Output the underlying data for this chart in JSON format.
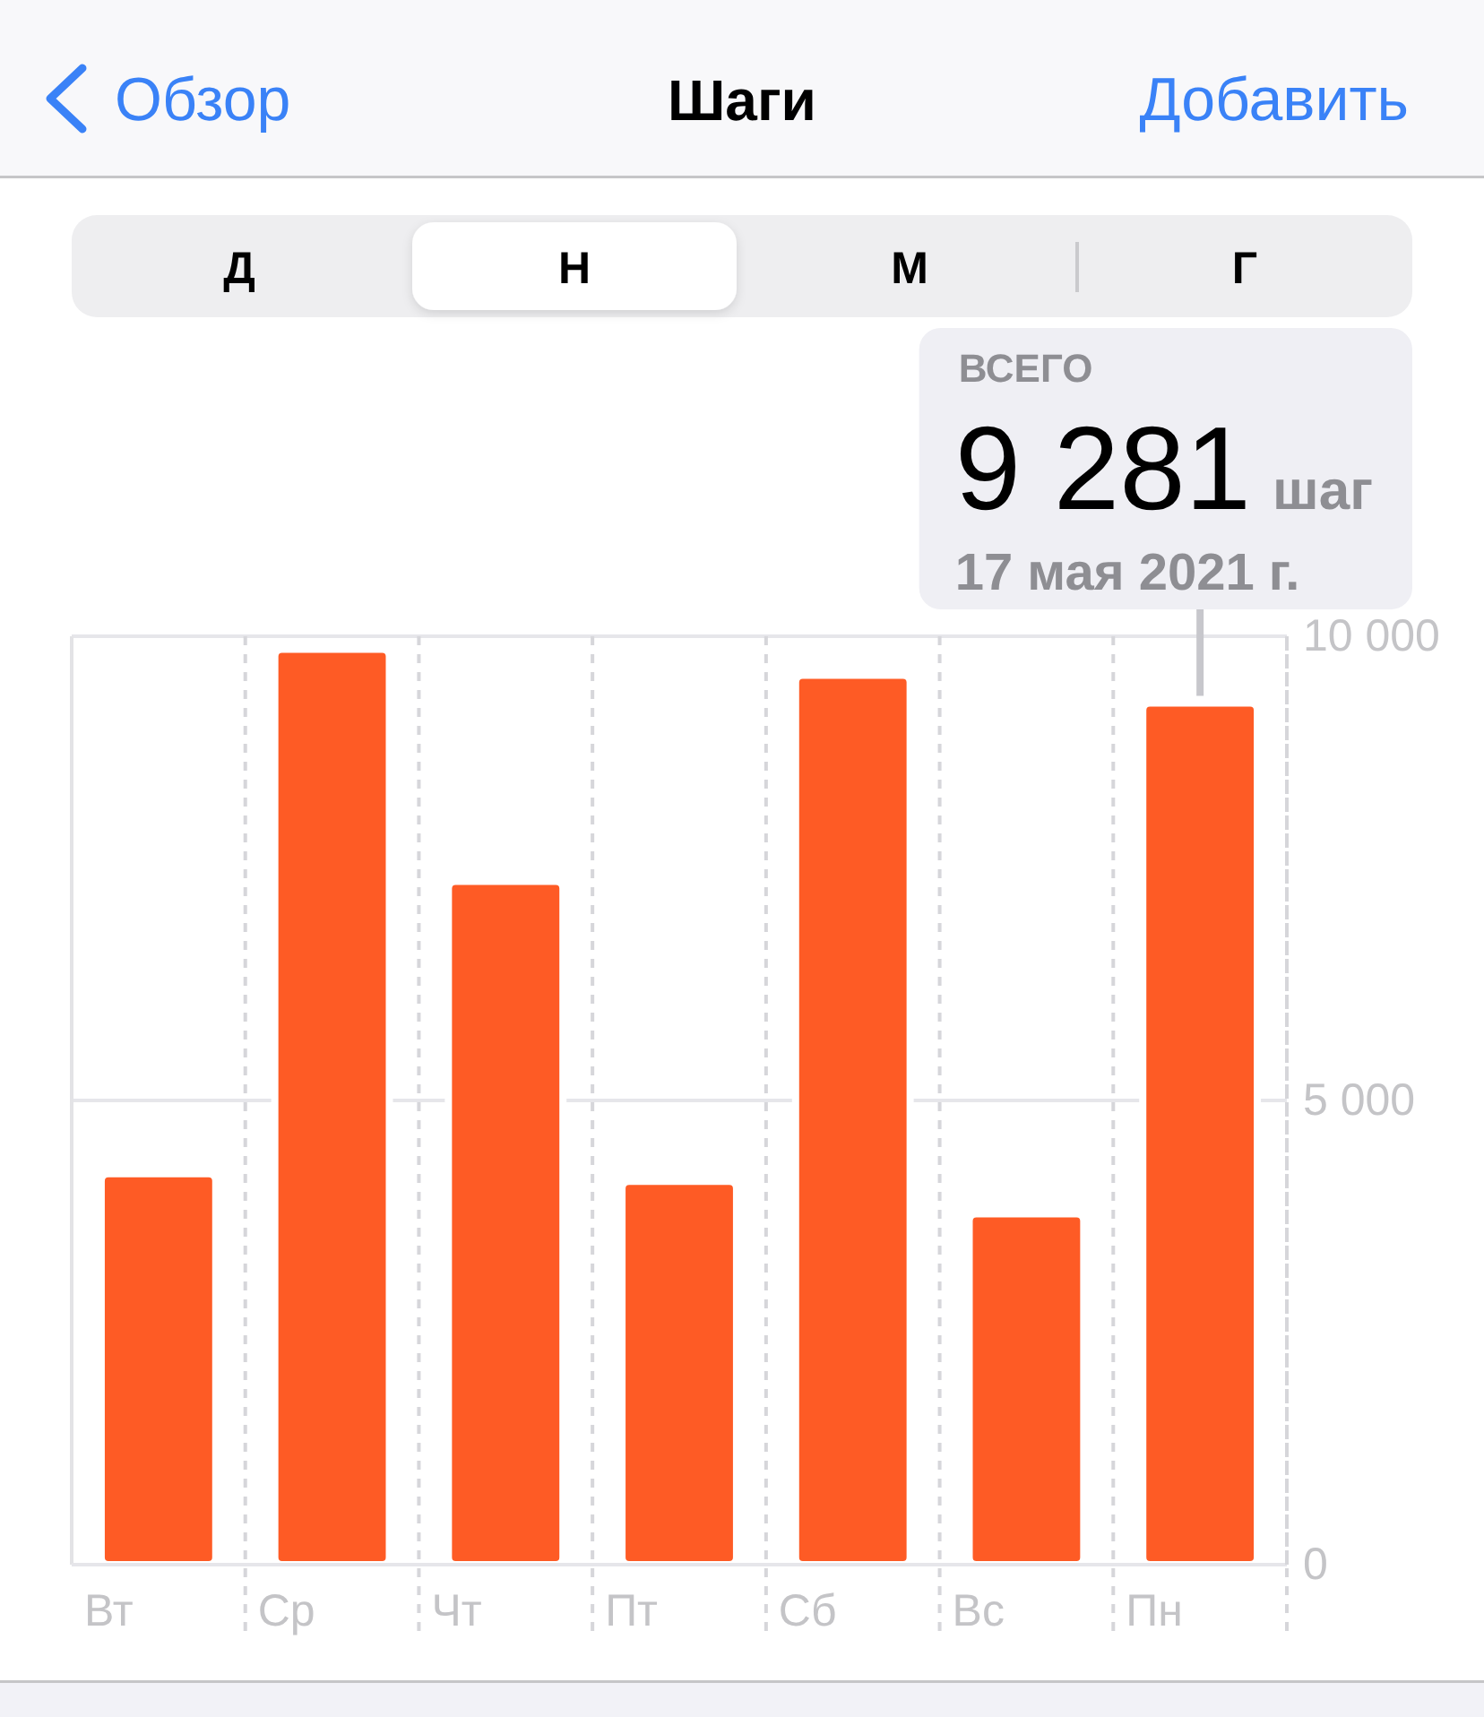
{
  "chart_data": {
    "type": "bar",
    "title": "Шаги",
    "categories": [
      "Вт",
      "Ср",
      "Чт",
      "Пт",
      "Сб",
      "Вс",
      "Пн"
    ],
    "values": [
      4210,
      9860,
      7360,
      4130,
      9580,
      3780,
      9281
    ],
    "color": "#fe5b25",
    "ylim": [
      0,
      10000
    ],
    "yticks": [
      0,
      {
        "value": 5000,
        "label": "5 000"
      },
      {
        "value": 10000,
        "label": "10 000"
      }
    ],
    "grid": true,
    "annotations": [
      "Обзор",
      "Добавить",
      "Д",
      "Н",
      "М",
      "Г",
      "ВСЕГО",
      {
        "text": "9 281",
        "x": "Пн",
        "y": 9281
      },
      "шаг",
      {
        "text": "17 мая 2021 г.",
        "x": "Пн",
        "y": 9281
      }
    ]
  }
}
